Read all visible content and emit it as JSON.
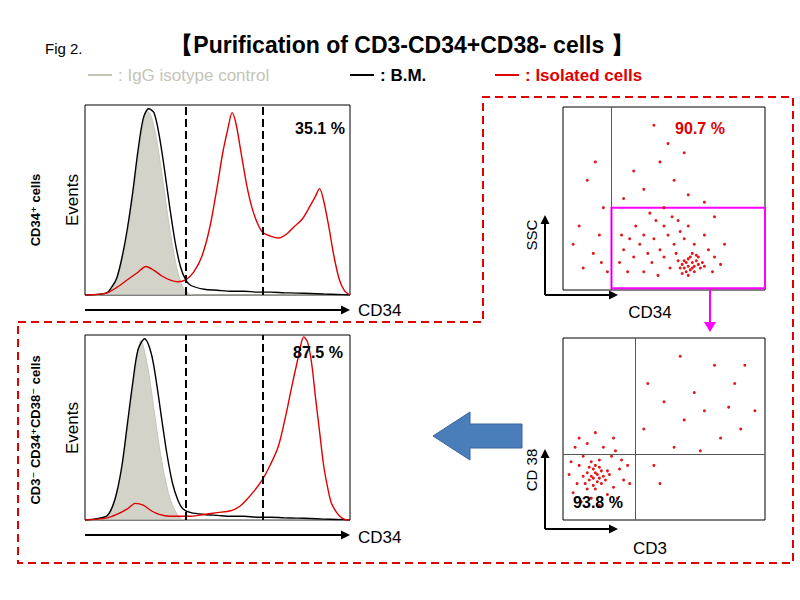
{
  "figure_label": "Fig 2.",
  "title": "【Purification of CD3-CD34+CD38- cells 】",
  "chart_data": [
    {
      "type": "line",
      "side_label": "CD34⁺ cells",
      "xlabel": "CD34",
      "ylabel": "Events",
      "annotation": {
        "text": "35.1 %",
        "color": "#000000"
      },
      "gate": [
        38,
        67
      ],
      "xlim": [
        0,
        100
      ],
      "ylim": [
        0,
        100
      ],
      "tick_labels": false,
      "grid": false,
      "legend": "top",
      "series": [
        {
          "name": ": IgG isotype control",
          "color": "#c4c4b8",
          "type": "area",
          "x": [
            0,
            5,
            8,
            10,
            12,
            14,
            16,
            18,
            20,
            22,
            23.5,
            25,
            27,
            29,
            31,
            33,
            35,
            37,
            39,
            41,
            100
          ],
          "values": [
            0,
            0,
            1,
            3,
            8,
            18,
            32,
            50,
            72,
            90,
            97,
            94,
            82,
            64,
            44,
            26,
            12,
            4,
            1,
            0,
            0
          ]
        },
        {
          "name": ": B.M.",
          "color": "#000000",
          "type": "line",
          "x": [
            0,
            8,
            10,
            12,
            14,
            16,
            18,
            20,
            22,
            24,
            26,
            28,
            30,
            32,
            34,
            36,
            38,
            40,
            45,
            50,
            55,
            60,
            65,
            70,
            75,
            80,
            85,
            90,
            95,
            100
          ],
          "values": [
            0,
            1,
            4,
            9,
            20,
            35,
            54,
            76,
            93,
            98,
            96,
            84,
            66,
            46,
            28,
            15,
            8,
            5,
            3,
            2.5,
            2,
            2,
            1.5,
            1.5,
            1.2,
            1,
            0.8,
            0.5,
            0.3,
            0
          ]
        },
        {
          "name": ": Isolated cells",
          "color": "#e00000",
          "type": "line",
          "x": [
            0,
            8,
            12,
            16,
            20,
            23,
            26,
            29,
            32,
            35,
            38,
            41,
            44,
            47,
            50,
            52,
            54,
            55.5,
            57,
            59,
            61,
            63,
            65,
            67,
            70,
            73,
            76,
            79,
            82,
            85,
            87,
            88.5,
            90,
            92,
            94,
            96,
            98,
            100
          ],
          "values": [
            0,
            1,
            4,
            8,
            12,
            15,
            13,
            10,
            8,
            7,
            8,
            12,
            20,
            35,
            58,
            75,
            88,
            96,
            90,
            74,
            58,
            46,
            38,
            33,
            31,
            30,
            32,
            36,
            40,
            47,
            52,
            56,
            50,
            36,
            20,
            8,
            2,
            0
          ]
        }
      ]
    },
    {
      "type": "line",
      "side_label": "CD3⁻ CD34⁺CD38⁻ cells",
      "xlabel": "CD34",
      "ylabel": "Events",
      "annotation": {
        "text": "87.5 %",
        "color": "#000000"
      },
      "gate": [
        38,
        67
      ],
      "xlim": [
        0,
        100
      ],
      "ylim": [
        0,
        100
      ],
      "tick_labels": false,
      "grid": false,
      "series": [
        {
          "name": ": IgG isotype control",
          "color": "#c4c4b8",
          "type": "area",
          "x": [
            0,
            5,
            8,
            10,
            12,
            14,
            16,
            18,
            20,
            21,
            22,
            24,
            26,
            28,
            30,
            32,
            34,
            36,
            38,
            100
          ],
          "values": [
            0,
            0,
            2,
            6,
            14,
            28,
            48,
            70,
            90,
            97,
            94,
            80,
            60,
            40,
            24,
            12,
            5,
            1,
            0,
            0
          ]
        },
        {
          "name": ": B.M.",
          "color": "#000000",
          "type": "line",
          "x": [
            0,
            8,
            10,
            12,
            14,
            16,
            18,
            20,
            22.5,
            25,
            27,
            29,
            31,
            33,
            35,
            37,
            40,
            45,
            50,
            55,
            60,
            65,
            70,
            75,
            80,
            85,
            90,
            95,
            100
          ],
          "values": [
            0,
            2,
            6,
            15,
            30,
            52,
            74,
            92,
            98,
            90,
            74,
            54,
            35,
            20,
            11,
            6,
            4,
            3,
            2.5,
            2,
            2,
            1.5,
            1.5,
            1.2,
            1,
            0.8,
            0.5,
            0.3,
            0
          ]
        },
        {
          "name": ": Isolated cells",
          "color": "#e00000",
          "type": "line",
          "x": [
            0,
            8,
            12,
            16,
            19,
            22,
            25,
            28,
            32,
            36,
            40,
            45,
            50,
            55,
            58,
            61,
            64,
            67,
            70,
            73,
            76,
            78,
            80,
            81.5,
            82.5,
            84,
            85.5,
            87,
            88.5,
            90,
            91.5,
            93,
            95,
            97,
            99,
            100
          ],
          "values": [
            0,
            1,
            3,
            6,
            9,
            8,
            5,
            3,
            2,
            2,
            2,
            3,
            4,
            5,
            7,
            11,
            16,
            22,
            30,
            40,
            58,
            72,
            85,
            95,
            99,
            96,
            85,
            66,
            48,
            30,
            18,
            9,
            4,
            1,
            0,
            0
          ]
        }
      ]
    },
    {
      "type": "scatter",
      "xlabel": "CD34",
      "ylabel": "SSC",
      "annotation": {
        "text": "90.7 %",
        "color": "#e00000"
      },
      "divider_x": 24,
      "gate": {
        "x": [
          24,
          100
        ],
        "y": [
          1,
          45
        ],
        "color": "#ff00ff"
      },
      "xlim": [
        0,
        100
      ],
      "ylim": [
        0,
        100
      ],
      "tick_labels": false,
      "grid": false,
      "color": "#e00000",
      "points": [
        [
          60,
          12
        ],
        [
          62,
          13
        ],
        [
          64,
          15
        ],
        [
          63,
          11
        ],
        [
          65,
          13
        ],
        [
          61,
          15
        ],
        [
          66,
          16
        ],
        [
          59,
          14
        ],
        [
          62,
          17
        ],
        [
          64,
          12
        ],
        [
          67,
          14
        ],
        [
          60,
          16
        ],
        [
          63,
          18
        ],
        [
          65,
          10
        ],
        [
          58,
          12
        ],
        [
          68,
          12
        ],
        [
          61,
          10
        ],
        [
          66,
          19
        ],
        [
          69,
          15
        ],
        [
          57,
          16
        ],
        [
          64,
          20
        ],
        [
          62,
          8
        ],
        [
          70,
          13
        ],
        [
          59,
          9
        ],
        [
          67,
          18
        ],
        [
          40,
          30
        ],
        [
          45,
          28
        ],
        [
          50,
          35
        ],
        [
          55,
          25
        ],
        [
          48,
          22
        ],
        [
          42,
          20
        ],
        [
          38,
          25
        ],
        [
          52,
          30
        ],
        [
          58,
          32
        ],
        [
          46,
          38
        ],
        [
          35,
          18
        ],
        [
          33,
          28
        ],
        [
          30,
          22
        ],
        [
          44,
          15
        ],
        [
          50,
          18
        ],
        [
          54,
          40
        ],
        [
          60,
          28
        ],
        [
          72,
          22
        ],
        [
          75,
          18
        ],
        [
          70,
          30
        ],
        [
          36,
          35
        ],
        [
          28,
          15
        ],
        [
          32,
          10
        ],
        [
          40,
          10
        ],
        [
          47,
          8
        ],
        [
          53,
          12
        ],
        [
          56,
          20
        ],
        [
          65,
          25
        ],
        [
          74,
          10
        ],
        [
          78,
          14
        ],
        [
          43,
          42
        ],
        [
          50,
          45
        ],
        [
          57,
          38
        ],
        [
          62,
          35
        ],
        [
          29,
          30
        ],
        [
          40,
          55
        ],
        [
          55,
          60
        ],
        [
          48,
          70
        ],
        [
          62,
          52
        ],
        [
          35,
          65
        ],
        [
          70,
          48
        ],
        [
          52,
          80
        ],
        [
          45,
          90
        ],
        [
          60,
          75
        ],
        [
          30,
          50
        ],
        [
          75,
          40
        ],
        [
          80,
          25
        ],
        [
          15,
          20
        ],
        [
          18,
          30
        ],
        [
          10,
          12
        ],
        [
          20,
          45
        ],
        [
          12,
          60
        ],
        [
          22,
          10
        ],
        [
          8,
          35
        ],
        [
          19,
          15
        ],
        [
          16,
          70
        ],
        [
          5,
          25
        ]
      ]
    },
    {
      "type": "scatter",
      "xlabel": "CD3",
      "ylabel": "CD 38",
      "annotation": {
        "text": "93.8 %",
        "color": "#000000"
      },
      "divider_x": 36,
      "divider_y": 36,
      "xlim": [
        0,
        100
      ],
      "ylim": [
        0,
        100
      ],
      "tick_labels": false,
      "grid": false,
      "color": "#e00000",
      "points": [
        [
          14,
          24
        ],
        [
          16,
          26
        ],
        [
          18,
          23
        ],
        [
          15,
          28
        ],
        [
          17,
          21
        ],
        [
          13,
          22
        ],
        [
          19,
          27
        ],
        [
          16,
          30
        ],
        [
          12,
          26
        ],
        [
          20,
          24
        ],
        [
          15,
          19
        ],
        [
          18,
          29
        ],
        [
          14,
          32
        ],
        [
          17,
          25
        ],
        [
          21,
          22
        ],
        [
          11,
          20
        ],
        [
          13,
          29
        ],
        [
          19,
          20
        ],
        [
          16,
          17
        ],
        [
          22,
          27
        ],
        [
          10,
          24
        ],
        [
          23,
          25
        ],
        [
          18,
          33
        ],
        [
          15,
          23
        ],
        [
          12,
          17
        ],
        [
          5,
          15
        ],
        [
          8,
          30
        ],
        [
          25,
          18
        ],
        [
          28,
          28
        ],
        [
          24,
          35
        ],
        [
          6,
          40
        ],
        [
          9,
          10
        ],
        [
          27,
          12
        ],
        [
          30,
          22
        ],
        [
          3,
          25
        ],
        [
          20,
          40
        ],
        [
          12,
          42
        ],
        [
          26,
          38
        ],
        [
          32,
          30
        ],
        [
          7,
          20
        ],
        [
          22,
          14
        ],
        [
          18,
          8
        ],
        [
          10,
          35
        ],
        [
          29,
          33
        ],
        [
          4,
          32
        ],
        [
          33,
          20
        ],
        [
          14,
          12
        ],
        [
          25,
          45
        ],
        [
          16,
          48
        ],
        [
          8,
          45
        ],
        [
          45,
          30
        ],
        [
          55,
          40
        ],
        [
          70,
          60
        ],
        [
          85,
          75
        ],
        [
          60,
          55
        ],
        [
          78,
          45
        ],
        [
          90,
          85
        ],
        [
          65,
          70
        ],
        [
          50,
          65
        ],
        [
          40,
          50
        ],
        [
          95,
          60
        ],
        [
          75,
          85
        ],
        [
          88,
          50
        ],
        [
          42,
          75
        ],
        [
          58,
          90
        ],
        [
          82,
          62
        ],
        [
          68,
          38
        ],
        [
          48,
          20
        ]
      ]
    }
  ]
}
